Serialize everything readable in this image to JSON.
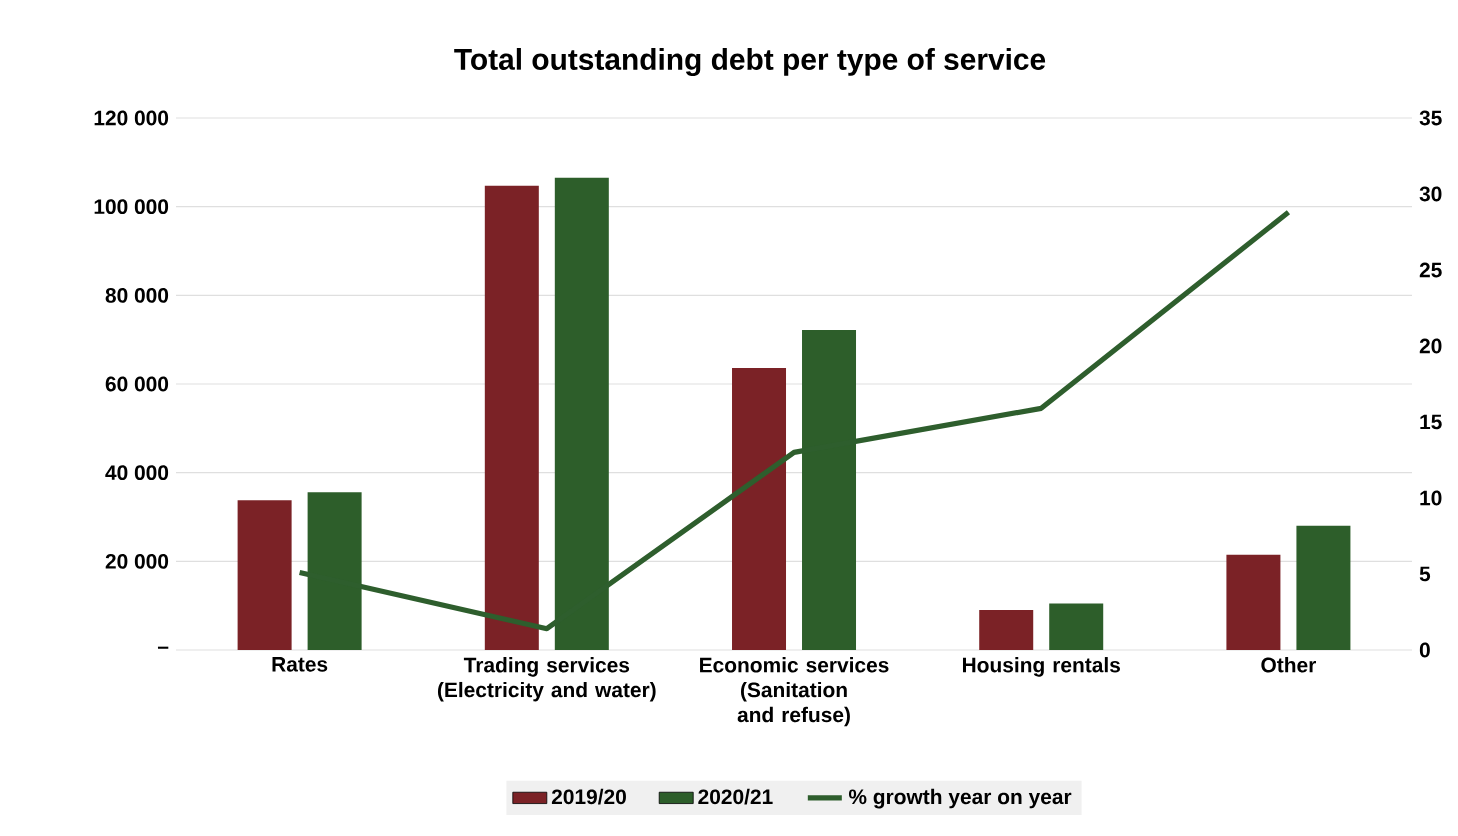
{
  "chart_data": {
    "type": "bar",
    "title": "Total outstanding debt per type of service",
    "categories": [
      "Rates",
      "Trading services (Electricity and water)",
      "Economic services (Sanitation and refuse)",
      "Housing rentals",
      "Other"
    ],
    "series": [
      {
        "name": "2019/20",
        "color": "#7b2226",
        "values": [
          33800,
          104700,
          63600,
          9000,
          21500
        ]
      },
      {
        "name": "2020/21",
        "color": "#2d5e2a",
        "values": [
          35600,
          106500,
          72200,
          10500,
          28000
        ]
      },
      {
        "name": "% growth year on year",
        "type": "line",
        "axis": "y2",
        "color": "#2e5e2d",
        "values": [
          5.1,
          1.4,
          13.0,
          15.9,
          28.8
        ]
      }
    ],
    "ylim": [
      0,
      120000
    ],
    "yticks": [
      {
        "value": 0,
        "label": "–"
      },
      {
        "value": 20000,
        "label": "20 000"
      },
      {
        "value": 40000,
        "label": "40 000"
      },
      {
        "value": 60000,
        "label": "60 000"
      },
      {
        "value": 80000,
        "label": "80 000"
      },
      {
        "value": 100000,
        "label": "100 000"
      },
      {
        "value": 120000,
        "label": "120 000"
      }
    ],
    "y2lim": [
      0,
      35
    ],
    "y2ticks": [
      0,
      5,
      10,
      15,
      20,
      25,
      30,
      35
    ],
    "grid": "y",
    "legend": "bottom"
  }
}
